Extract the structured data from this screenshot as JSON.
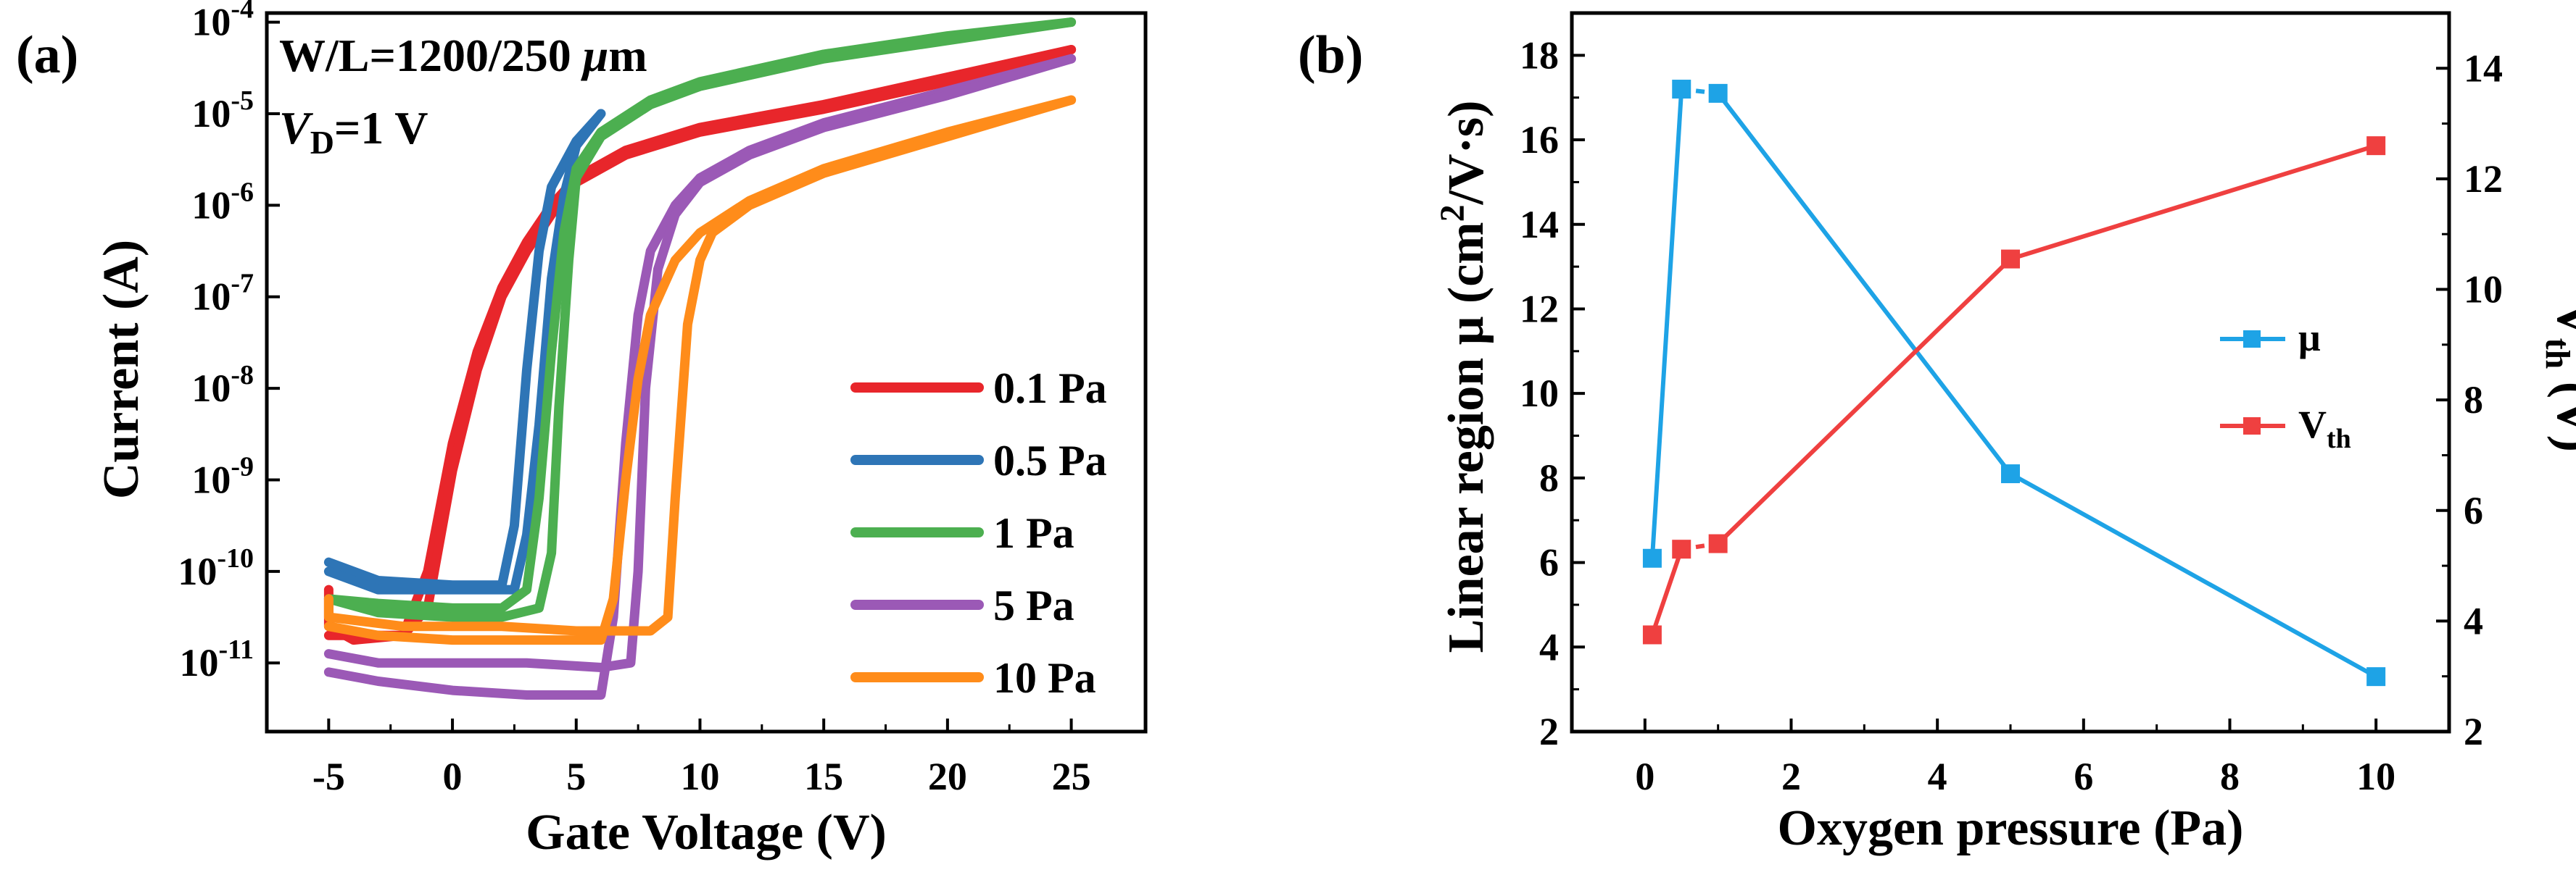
{
  "chart_data": [
    {
      "panel": "(a)",
      "type": "line",
      "title": "",
      "xlabel": "Gate Voltage (V)",
      "ylabel": "Current (A)",
      "yscale": "log",
      "xlim": [
        -7.5,
        28
      ],
      "ylim_exp": [
        -11.75,
        -3.9
      ],
      "xticks": [
        "-5",
        "0",
        "5",
        "10",
        "15",
        "20",
        "25"
      ],
      "yticks": [
        {
          "base": "10",
          "exp": "-11"
        },
        {
          "base": "10",
          "exp": "-10"
        },
        {
          "base": "10",
          "exp": "-9"
        },
        {
          "base": "10",
          "exp": "-8"
        },
        {
          "base": "10",
          "exp": "-7"
        },
        {
          "base": "10",
          "exp": "-6"
        },
        {
          "base": "10",
          "exp": "-5"
        },
        {
          "base": "10",
          "exp": "-4"
        }
      ],
      "annotations": [
        {
          "text": "W/L=1200/250 μm"
        },
        {
          "text": "V",
          "sub": "D",
          "rest": "=1 V"
        }
      ],
      "legend_position": "bottom-right",
      "series": [
        {
          "name": "0.1 Pa",
          "color": "#e8262b",
          "forward": [
            [
              -5,
              -10.7
            ],
            [
              -2,
              -10.7
            ],
            [
              -1,
              -10
            ],
            [
              0,
              -8.6
            ],
            [
              1,
              -7.6
            ],
            [
              2,
              -6.9
            ],
            [
              3,
              -6.4
            ],
            [
              4,
              -6.0
            ],
            [
              5,
              -5.7
            ],
            [
              7,
              -5.4
            ],
            [
              10,
              -5.15
            ],
            [
              15,
              -4.9
            ],
            [
              20,
              -4.6
            ],
            [
              25,
              -4.3
            ]
          ],
          "reverse": [
            [
              25,
              -4.3
            ],
            [
              20,
              -4.65
            ],
            [
              15,
              -4.95
            ],
            [
              10,
              -5.2
            ],
            [
              7,
              -5.45
            ],
            [
              5,
              -5.75
            ],
            [
              4,
              -6.1
            ],
            [
              3,
              -6.5
            ],
            [
              2,
              -7.0
            ],
            [
              1,
              -7.8
            ],
            [
              0,
              -8.9
            ],
            [
              -1,
              -10.4
            ],
            [
              -2,
              -10.7
            ],
            [
              -4,
              -10.75
            ],
            [
              -5,
              -10.6
            ],
            [
              -5,
              -10.2
            ]
          ]
        },
        {
          "name": "0.5 Pa",
          "color": "#2e75b6",
          "forward": [
            [
              -5,
              -9.9
            ],
            [
              -3,
              -10.1
            ],
            [
              0,
              -10.15
            ],
            [
              2,
              -10.15
            ],
            [
              2.5,
              -9.5
            ],
            [
              3,
              -7.8
            ],
            [
              3.5,
              -6.5
            ],
            [
              4,
              -5.8
            ],
            [
              5,
              -5.3
            ],
            [
              6,
              -5.0
            ]
          ],
          "reverse": [
            [
              6,
              -5.0
            ],
            [
              5,
              -5.35
            ],
            [
              4.5,
              -5.9
            ],
            [
              4,
              -6.8
            ],
            [
              3.5,
              -8.4
            ],
            [
              3,
              -9.6
            ],
            [
              2.5,
              -10.2
            ],
            [
              0,
              -10.2
            ],
            [
              -3,
              -10.2
            ],
            [
              -5,
              -10.0
            ]
          ]
        },
        {
          "name": "1 Pa",
          "color": "#4caf50",
          "forward": [
            [
              -5,
              -10.3
            ],
            [
              -3,
              -10.35
            ],
            [
              0,
              -10.4
            ],
            [
              2,
              -10.4
            ],
            [
              3,
              -10.2
            ],
            [
              3.5,
              -9.2
            ],
            [
              4,
              -7.6
            ],
            [
              4.5,
              -6.3
            ],
            [
              5,
              -5.6
            ],
            [
              6,
              -5.2
            ],
            [
              8,
              -4.85
            ],
            [
              10,
              -4.65
            ],
            [
              15,
              -4.35
            ],
            [
              20,
              -4.15
            ],
            [
              25,
              -4.0
            ]
          ],
          "reverse": [
            [
              25,
              -4.0
            ],
            [
              20,
              -4.2
            ],
            [
              15,
              -4.4
            ],
            [
              10,
              -4.7
            ],
            [
              8,
              -4.9
            ],
            [
              6,
              -5.25
            ],
            [
              5,
              -5.7
            ],
            [
              4.7,
              -6.6
            ],
            [
              4.3,
              -8.2
            ],
            [
              4,
              -9.8
            ],
            [
              3.5,
              -10.4
            ],
            [
              2,
              -10.5
            ],
            [
              0,
              -10.5
            ],
            [
              -3,
              -10.45
            ],
            [
              -5,
              -10.3
            ]
          ]
        },
        {
          "name": "5 Pa",
          "color": "#9b59b6",
          "forward": [
            [
              -5,
              -11.1
            ],
            [
              -3,
              -11.2
            ],
            [
              0,
              -11.3
            ],
            [
              3,
              -11.35
            ],
            [
              6,
              -11.35
            ],
            [
              6.5,
              -10.5
            ],
            [
              7,
              -8.6
            ],
            [
              7.5,
              -7.2
            ],
            [
              8,
              -6.5
            ],
            [
              9,
              -6.0
            ],
            [
              10,
              -5.7
            ],
            [
              12,
              -5.4
            ],
            [
              15,
              -5.1
            ],
            [
              20,
              -4.75
            ],
            [
              25,
              -4.4
            ]
          ],
          "reverse": [
            [
              25,
              -4.4
            ],
            [
              20,
              -4.8
            ],
            [
              15,
              -5.15
            ],
            [
              12,
              -5.45
            ],
            [
              10,
              -5.75
            ],
            [
              9,
              -6.1
            ],
            [
              8.3,
              -6.7
            ],
            [
              7.8,
              -8.0
            ],
            [
              7.5,
              -10.0
            ],
            [
              7.2,
              -11.0
            ],
            [
              6,
              -11.05
            ],
            [
              3,
              -11.0
            ],
            [
              0,
              -11.0
            ],
            [
              -3,
              -11.0
            ],
            [
              -5,
              -10.9
            ]
          ]
        },
        {
          "name": "10 Pa",
          "color": "#ff8c1a",
          "forward": [
            [
              -5,
              -10.6
            ],
            [
              -3,
              -10.7
            ],
            [
              0,
              -10.75
            ],
            [
              3,
              -10.75
            ],
            [
              6,
              -10.75
            ],
            [
              6.5,
              -10.3
            ],
            [
              7,
              -9.0
            ],
            [
              7.5,
              -7.9
            ],
            [
              8,
              -7.2
            ],
            [
              9,
              -6.6
            ],
            [
              10,
              -6.3
            ],
            [
              12,
              -5.95
            ],
            [
              15,
              -5.6
            ],
            [
              20,
              -5.2
            ],
            [
              25,
              -4.85
            ]
          ],
          "reverse": [
            [
              25,
              -4.85
            ],
            [
              20,
              -5.25
            ],
            [
              15,
              -5.65
            ],
            [
              12,
              -6.0
            ],
            [
              10.5,
              -6.3
            ],
            [
              10,
              -6.6
            ],
            [
              9.5,
              -7.3
            ],
            [
              9,
              -9.2
            ],
            [
              8.7,
              -10.5
            ],
            [
              8,
              -10.65
            ],
            [
              5,
              -10.65
            ],
            [
              2,
              -10.6
            ],
            [
              -2,
              -10.6
            ],
            [
              -5,
              -10.5
            ],
            [
              -5,
              -10.3
            ]
          ]
        }
      ]
    },
    {
      "panel": "(b)",
      "type": "line",
      "title": "",
      "xlabel": "Oxygen pressure (Pa)",
      "ylabel": "Linear region μ (cm²/V·s)",
      "ylabel_parts": {
        "pre": "Linear region μ (cm",
        "sup": "2",
        "post": "/V·s)"
      },
      "y2label": "Vth (V)",
      "y2label_parts": {
        "pre": "V",
        "sub": "th",
        "post": " (V)"
      },
      "xlim": [
        -1,
        11
      ],
      "ylim": [
        2,
        19
      ],
      "y2lim": [
        2,
        15
      ],
      "xticks": [
        "0",
        "2",
        "4",
        "6",
        "8",
        "10"
      ],
      "yticks": [
        "2",
        "4",
        "6",
        "8",
        "10",
        "12",
        "14",
        "16",
        "18"
      ],
      "y2ticks": [
        "2",
        "4",
        "6",
        "8",
        "10",
        "12",
        "14"
      ],
      "legend_position": "right",
      "series": [
        {
          "name": "μ",
          "legend_base": "μ",
          "legend_sub": "",
          "axis": "left",
          "color": "#1ea3e6",
          "x": [
            0.1,
            0.5,
            1,
            5,
            10
          ],
          "values": [
            6.1,
            17.2,
            17.1,
            8.1,
            3.3
          ]
        },
        {
          "name": "Vth",
          "legend_base": "V",
          "legend_sub": "th",
          "axis": "right",
          "color": "#ef4040",
          "x": [
            0.1,
            0.5,
            1,
            5,
            10
          ],
          "values": [
            3.75,
            5.3,
            5.4,
            10.55,
            12.6
          ]
        }
      ]
    }
  ]
}
